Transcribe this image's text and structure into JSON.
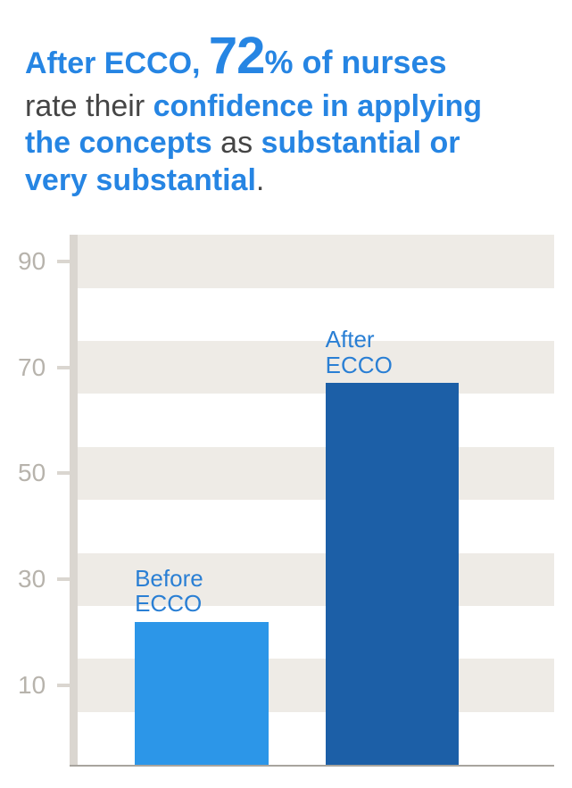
{
  "headline": {
    "lead": "After ECCO, ",
    "big_number": "72",
    "pct_word": "% of nurses",
    "line2_thin": "rate their ",
    "line2_blue": "confidence in applying",
    "line3_blue_a": "the concepts",
    "line3_thin": " as ",
    "line3_blue_b": "substantial or",
    "line4_blue": "very substantial",
    "period": "."
  },
  "chart": {
    "type": "bar",
    "ylim_min": 0,
    "ylim_max": 100,
    "ytick_values": [
      10,
      30,
      50,
      70,
      90
    ],
    "ytick_labels": [
      "10",
      "30",
      "50",
      "70",
      "90"
    ],
    "grid_color": "#eeebe6",
    "axis_color": "#dad6d0",
    "baseline_color": "#a8a49e",
    "tick_label_color": "#b7b3ac",
    "tick_label_fontsize": 28,
    "background_color": "#ffffff",
    "bars": [
      {
        "label_line1": "Before",
        "label_line2": "ECCO",
        "value": 27,
        "color": "#2c96e8",
        "x_pct": 12,
        "width_pct": 28
      },
      {
        "label_line1": "After",
        "label_line2": "ECCO",
        "value": 72,
        "color": "#1c5fa7",
        "x_pct": 52,
        "width_pct": 28
      }
    ],
    "bar_label_color": "#2a7fd4",
    "bar_label_fontsize": 26
  }
}
